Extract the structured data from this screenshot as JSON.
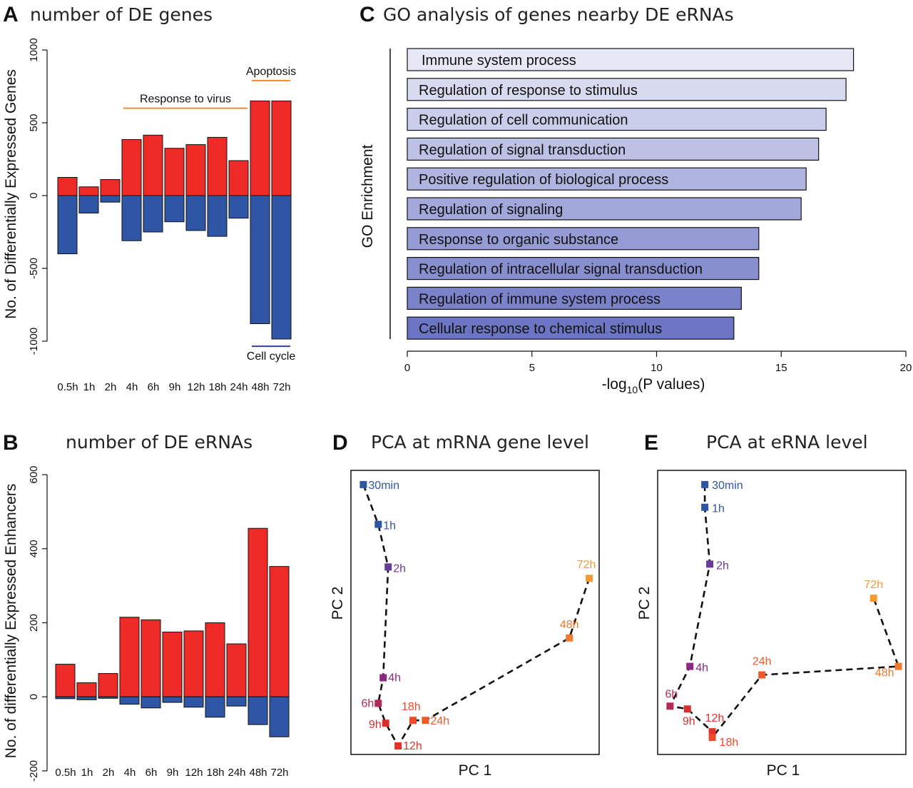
{
  "panels": {
    "A": {
      "letter": "A",
      "title": "number of DE genes",
      "ylabel": "No. of Differentially Expressed Genes"
    },
    "B": {
      "letter": "B",
      "title": "number of DE eRNAs",
      "ylabel": "No. of differentially Expressed Enhancers"
    },
    "C": {
      "letter": "C",
      "title": "GO analysis of genes nearby DE eRNAs",
      "ylabel": "GO Enrichment",
      "xlabel_main": "-log",
      "xlabel_sub": "10",
      "xlabel_tail": "(P values)"
    },
    "D": {
      "letter": "D",
      "title": "PCA at mRNA gene level",
      "xlabel": "PC 1",
      "ylabel": "PC 2"
    },
    "E": {
      "letter": "E",
      "title": "PCA at eRNA level",
      "xlabel": "PC 1",
      "ylabel": "PC 2"
    }
  },
  "colors": {
    "up": "#ee2b27",
    "down": "#2f56a4",
    "orange": "#f08a2e",
    "navy": "#3a3f8f"
  },
  "chart_data": [
    {
      "id": "A",
      "type": "bar",
      "title": "number of DE genes",
      "ylabel": "No. of Differentially Expressed Genes",
      "categories": [
        "0.5h",
        "1h",
        "2h",
        "4h",
        "6h",
        "9h",
        "12h",
        "18h",
        "24h",
        "48h",
        "72h"
      ],
      "series": [
        {
          "color": "#ee2b27",
          "values": [
            125,
            60,
            110,
            385,
            415,
            325,
            350,
            400,
            240,
            650,
            650
          ]
        },
        {
          "color": "#2f56a4",
          "values": [
            -400,
            -120,
            -45,
            -310,
            -250,
            -180,
            -240,
            -280,
            -155,
            -880,
            -985
          ]
        }
      ],
      "yticks": [
        -1000,
        -500,
        0,
        500,
        1000
      ],
      "ylim": [
        -1000,
        1000
      ],
      "annotations": [
        {
          "text": "Response to virus",
          "from": "4h",
          "to": "24h",
          "y": 600,
          "color": "#f08a2e"
        },
        {
          "text": "Apoptosis",
          "from": "48h",
          "to": "72h",
          "y": 790,
          "color": "#f08a2e"
        },
        {
          "text": "Cell cycle",
          "from": "48h",
          "to": "72h",
          "y": -1035,
          "color": "#3a3f8f"
        }
      ]
    },
    {
      "id": "B",
      "type": "bar",
      "title": "number of DE eRNAs",
      "ylabel": "No. of differentially Expressed Enhancers",
      "categories": [
        "0.5h",
        "1h",
        "2h",
        "4h",
        "6h",
        "9h",
        "12h",
        "18h",
        "24h",
        "48h",
        "72h"
      ],
      "series": [
        {
          "color": "#ee2b27",
          "values": [
            88,
            38,
            63,
            215,
            208,
            175,
            178,
            200,
            143,
            455,
            352
          ]
        },
        {
          "color": "#2f56a4",
          "values": [
            -5,
            -8,
            -4,
            -20,
            -30,
            -15,
            -28,
            -55,
            -25,
            -75,
            -108
          ]
        }
      ],
      "yticks": [
        -200,
        0,
        200,
        400,
        600
      ],
      "ylim": [
        -200,
        600
      ]
    },
    {
      "id": "C",
      "type": "bar",
      "orientation": "horizontal",
      "title": "GO analysis of genes nearby DE eRNAs",
      "xlabel": "-log10(P values)",
      "ylabel": "GO Enrichment",
      "categories": [
        "Immune system process",
        "Regulation of response to stimulus",
        "Regulation of cell communication",
        "Regulation of signal transduction",
        "Positive regulation of biological process",
        "Regulation of signaling",
        "Response to organic substance",
        "Regulation of intracellular signal transduction",
        "Regulation of immune system process",
        "Cellular response to chemical stimulus"
      ],
      "values": [
        17.9,
        17.6,
        16.8,
        16.5,
        16.0,
        15.8,
        14.1,
        14.1,
        13.4,
        13.1
      ],
      "xticks": [
        0,
        5,
        10,
        15,
        20
      ],
      "xlim": [
        0,
        20
      ]
    },
    {
      "id": "D",
      "type": "scatter",
      "title": "PCA at mRNA gene level",
      "xlabel": "PC 1",
      "ylabel": "PC 2",
      "connected": true,
      "points": [
        {
          "label": "30min",
          "x": 0.05,
          "y": 0.95,
          "color": "#2f56a4"
        },
        {
          "label": "1h",
          "x": 0.11,
          "y": 0.81,
          "color": "#2f56a4"
        },
        {
          "label": "2h",
          "x": 0.15,
          "y": 0.66,
          "color": "#6a3a9a"
        },
        {
          "label": "4h",
          "x": 0.13,
          "y": 0.27,
          "color": "#8a2a7e"
        },
        {
          "label": "6h",
          "x": 0.11,
          "y": 0.18,
          "color": "#b02a5a"
        },
        {
          "label": "9h",
          "x": 0.14,
          "y": 0.11,
          "color": "#d8302e"
        },
        {
          "label": "12h",
          "x": 0.19,
          "y": 0.03,
          "color": "#e8302a"
        },
        {
          "label": "18h",
          "x": 0.25,
          "y": 0.12,
          "color": "#ee4a2a"
        },
        {
          "label": "24h",
          "x": 0.3,
          "y": 0.12,
          "color": "#ee5a2a"
        },
        {
          "label": "48h",
          "x": 0.88,
          "y": 0.41,
          "color": "#f07a2e"
        },
        {
          "label": "72h",
          "x": 0.96,
          "y": 0.62,
          "color": "#f59a34"
        }
      ]
    },
    {
      "id": "E",
      "type": "scatter",
      "title": "PCA at eRNA level",
      "xlabel": "PC 1",
      "ylabel": "PC 2",
      "connected": true,
      "points": [
        {
          "label": "30min",
          "x": 0.19,
          "y": 0.95,
          "color": "#2f56a4"
        },
        {
          "label": "1h",
          "x": 0.19,
          "y": 0.87,
          "color": "#2f56a4"
        },
        {
          "label": "2h",
          "x": 0.21,
          "y": 0.67,
          "color": "#6a3a9a"
        },
        {
          "label": "4h",
          "x": 0.13,
          "y": 0.31,
          "color": "#8a2a7e"
        },
        {
          "label": "6h",
          "x": 0.05,
          "y": 0.17,
          "color": "#b02a5a"
        },
        {
          "label": "9h",
          "x": 0.12,
          "y": 0.16,
          "color": "#d8302e"
        },
        {
          "label": "12h",
          "x": 0.22,
          "y": 0.08,
          "color": "#e8302a"
        },
        {
          "label": "18h",
          "x": 0.22,
          "y": 0.06,
          "color": "#ee4a2a"
        },
        {
          "label": "24h",
          "x": 0.42,
          "y": 0.28,
          "color": "#ee5a2a"
        },
        {
          "label": "48h",
          "x": 0.97,
          "y": 0.31,
          "color": "#f07a2e"
        },
        {
          "label": "72h",
          "x": 0.87,
          "y": 0.55,
          "color": "#f59a34"
        }
      ]
    }
  ]
}
